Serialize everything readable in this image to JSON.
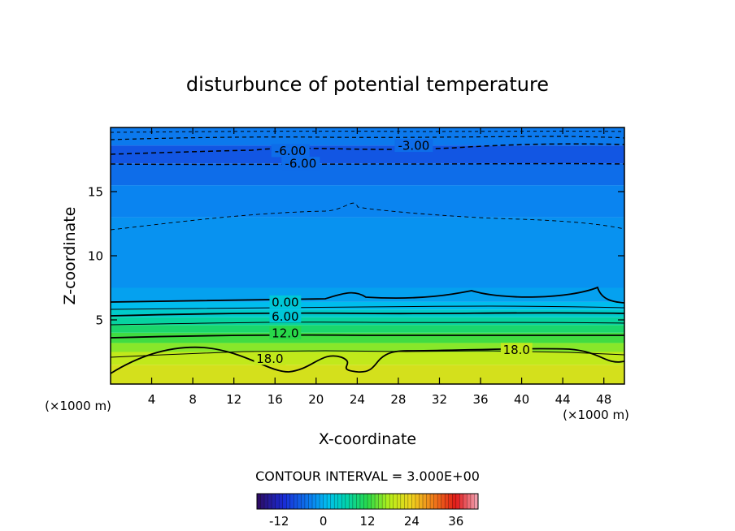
{
  "chart_data": {
    "type": "heatmap",
    "title": "disturbunce of potential temperature",
    "xlabel": "X-coordinate",
    "ylabel": "Z-coordinate",
    "x_unit": "(×1000 m)",
    "z_unit": "(×1000 m)",
    "xlim": [
      0,
      50
    ],
    "ylim": [
      0,
      20
    ],
    "x_ticks": [
      4,
      8,
      12,
      16,
      20,
      24,
      28,
      32,
      36,
      40,
      44,
      48
    ],
    "y_ticks": [
      5,
      10,
      15
    ],
    "contour_interval_text": "CONTOUR INTERVAL = 3.000E+00",
    "contour_labels": [
      {
        "text": "-6.00",
        "x": 17.5,
        "y": 18.2
      },
      {
        "text": "-3.00",
        "x": 29.5,
        "y": 18.6
      },
      {
        "text": "-6.00",
        "x": 18.5,
        "y": 17.2
      },
      {
        "text": "0.00",
        "x": 17.0,
        "y": 6.4
      },
      {
        "text": "6.00",
        "x": 17.0,
        "y": 5.3
      },
      {
        "text": "12.0",
        "x": 17.0,
        "y": 4.0
      },
      {
        "text": "18.0",
        "x": 15.5,
        "y": 2.0
      },
      {
        "text": "18.0",
        "x": 39.5,
        "y": 2.7
      }
    ],
    "colorbar": {
      "min": -18,
      "max": 42,
      "ticks": [
        "-12",
        "0",
        "12",
        "24",
        "36"
      ],
      "tick_values": [
        -12,
        0,
        12,
        24,
        36
      ]
    },
    "field_bands": [
      {
        "zmin": 0.0,
        "zmax": 1.5,
        "value": 21
      },
      {
        "zmin": 1.5,
        "zmax": 2.5,
        "value": 19
      },
      {
        "zmin": 2.5,
        "zmax": 3.2,
        "value": 16
      },
      {
        "zmin": 3.2,
        "zmax": 4.0,
        "value": 13
      },
      {
        "zmin": 4.0,
        "zmax": 4.6,
        "value": 10
      },
      {
        "zmin": 4.6,
        "zmax": 5.2,
        "value": 7
      },
      {
        "zmin": 5.2,
        "zmax": 5.8,
        "value": 4
      },
      {
        "zmin": 5.8,
        "zmax": 6.4,
        "value": 1
      },
      {
        "zmin": 6.4,
        "zmax": 7.5,
        "value": -1
      },
      {
        "zmin": 7.5,
        "zmax": 13.0,
        "value": -2
      },
      {
        "zmin": 13.0,
        "zmax": 15.5,
        "value": -3
      },
      {
        "zmin": 15.5,
        "zmax": 17.2,
        "value": -5
      },
      {
        "zmin": 17.2,
        "zmax": 18.6,
        "value": -7
      },
      {
        "zmin": 18.6,
        "zmax": 20.0,
        "value": -4
      }
    ]
  }
}
